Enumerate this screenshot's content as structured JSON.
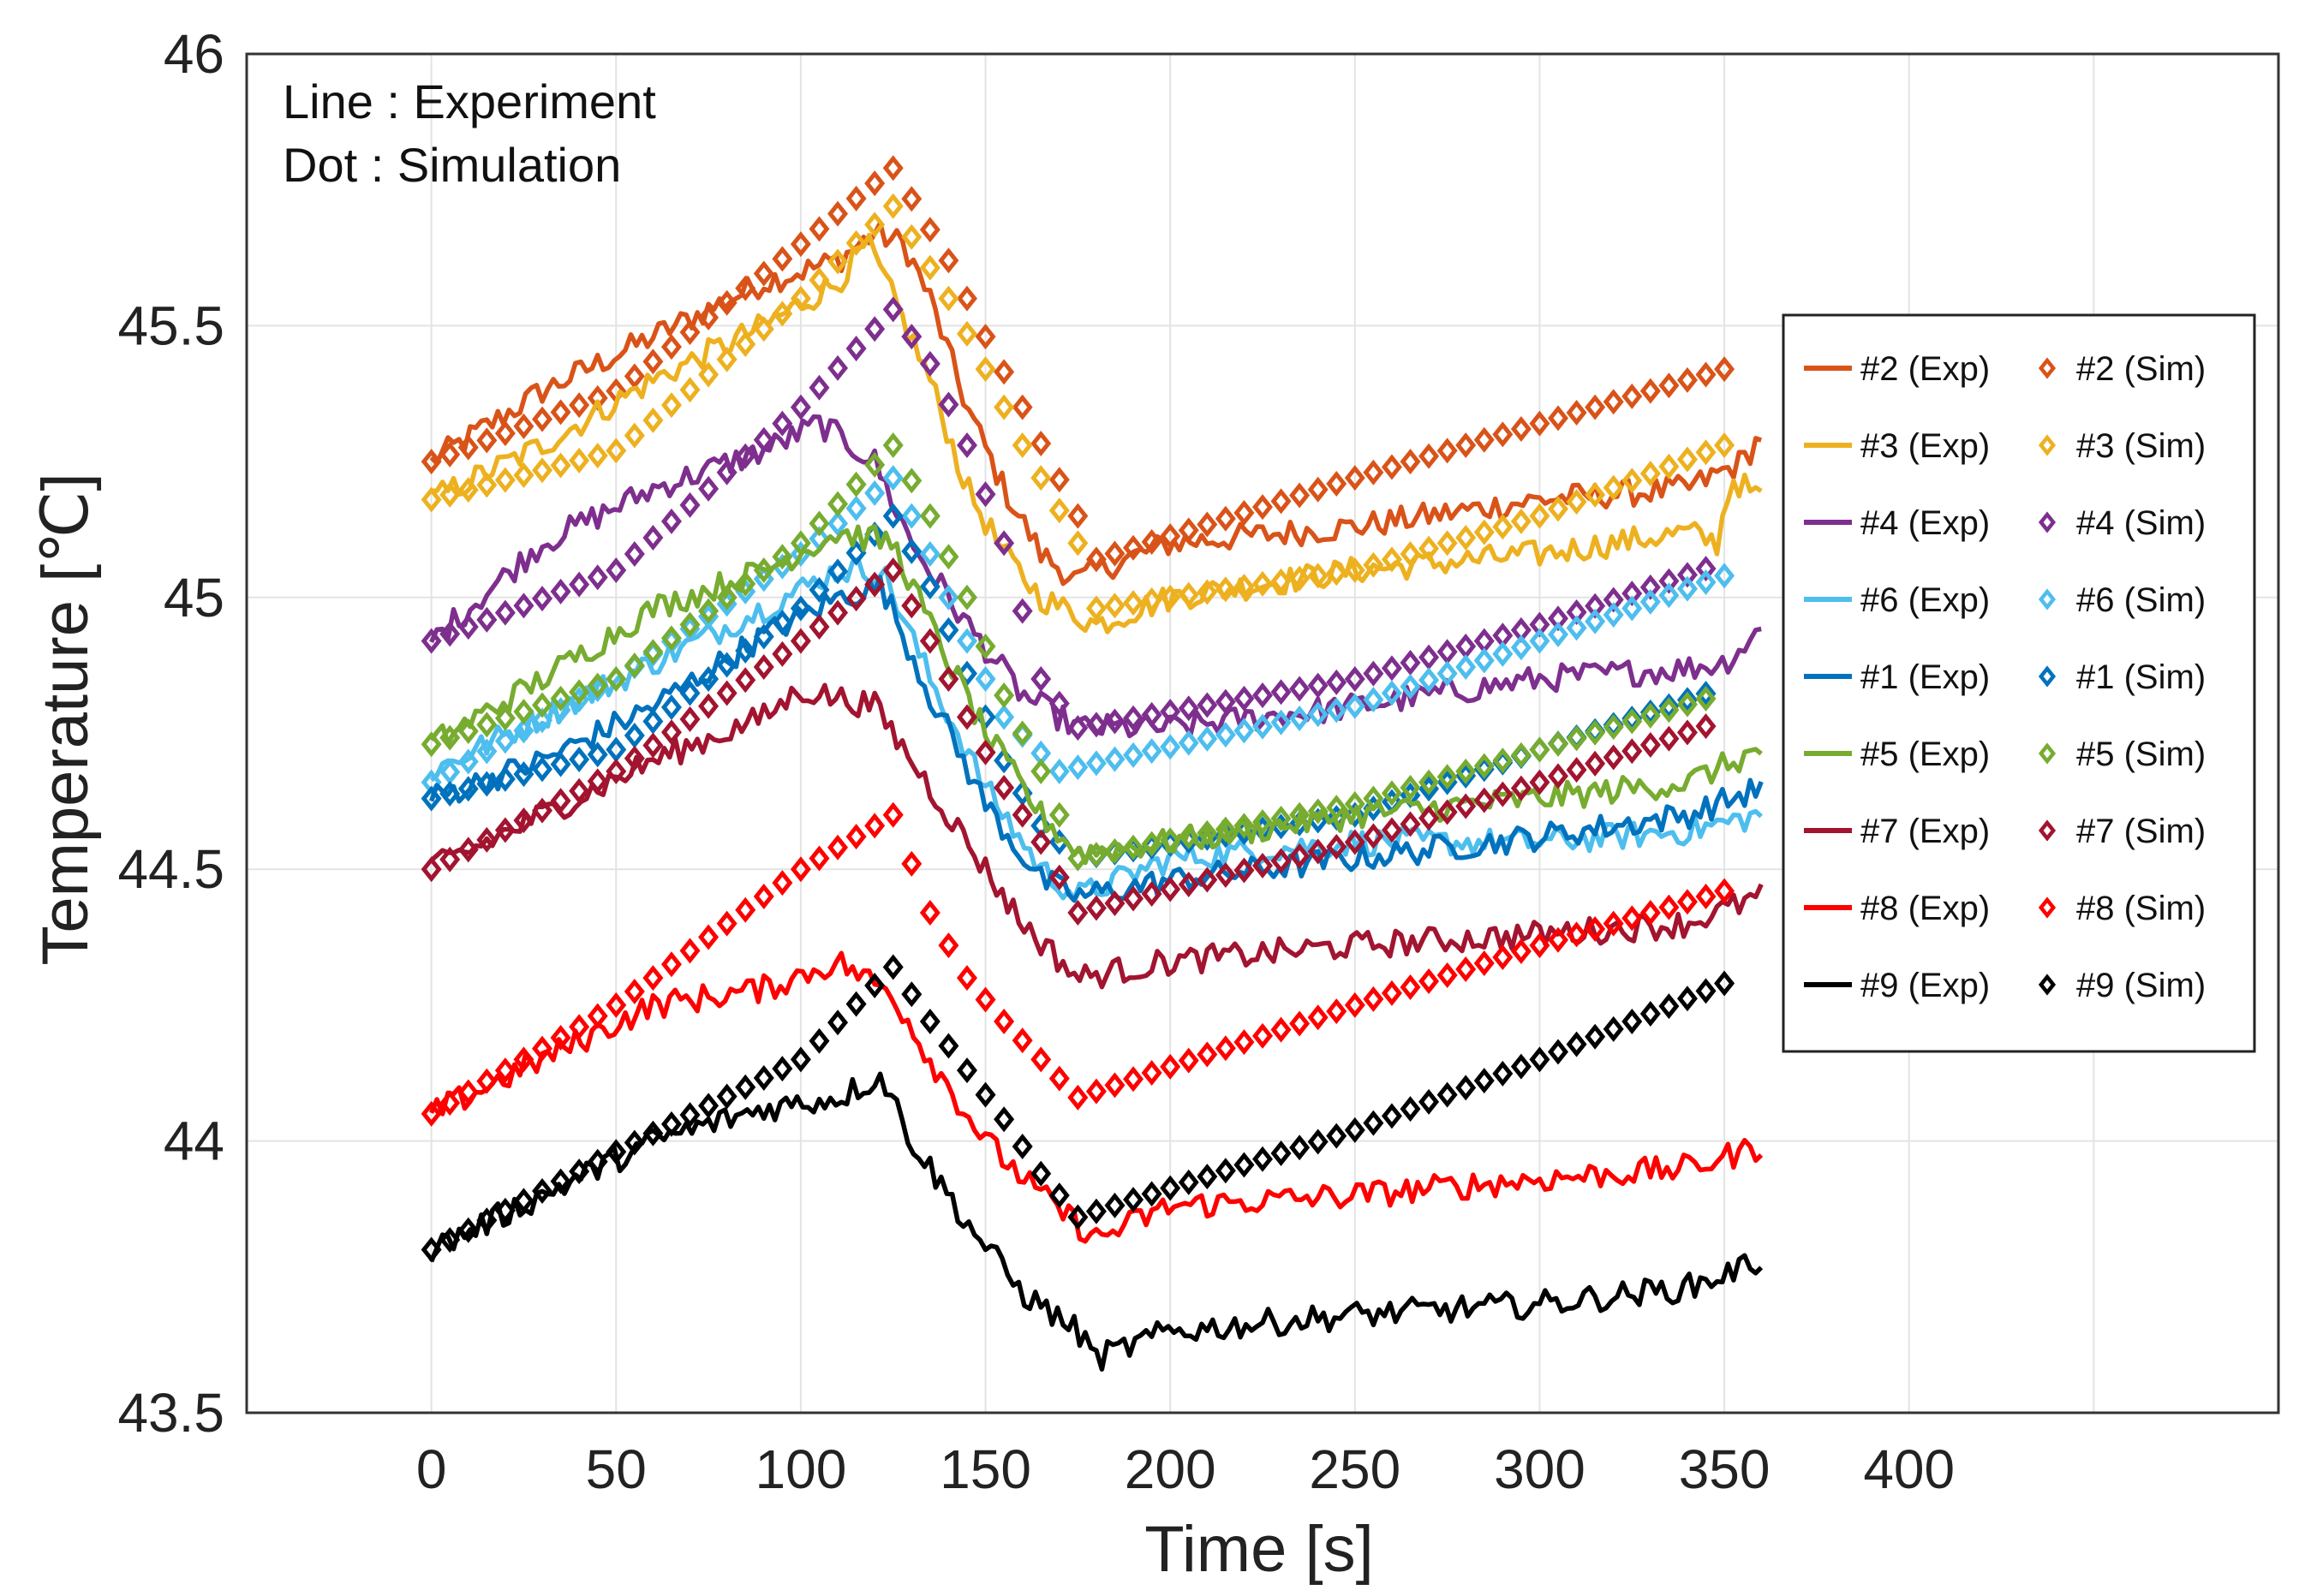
{
  "chart_data": {
    "type": "line",
    "xlabel": "Time [s]",
    "ylabel": "Temperature [℃]",
    "xlim": [
      -50,
      500
    ],
    "ylim": [
      43.5,
      46
    ],
    "xticks": [
      0,
      50,
      100,
      150,
      200,
      250,
      300,
      350,
      400
    ],
    "yticks": [
      43.5,
      44,
      44.5,
      45,
      45.5,
      46
    ],
    "ytick_labels": [
      "43.5",
      "44",
      "44.5",
      "45",
      "45.5",
      "46"
    ],
    "grid": true,
    "annotations": [
      "Line : Experiment",
      "Dot : Simulation"
    ],
    "legend_position": "right",
    "series": [
      {
        "id": "2",
        "color": "#D95319",
        "exp_label": "#2 (Exp)",
        "sim_label": "#2 (Sim)",
        "exp": [
          [
            0,
            45.25
          ],
          [
            30,
            45.38
          ],
          [
            60,
            45.48
          ],
          [
            90,
            45.58
          ],
          [
            110,
            45.62
          ],
          [
            120,
            45.67
          ],
          [
            128,
            45.65
          ],
          [
            135,
            45.55
          ],
          [
            145,
            45.35
          ],
          [
            155,
            45.2
          ],
          [
            165,
            45.08
          ],
          [
            175,
            45.03
          ],
          [
            180,
            45.05
          ],
          [
            200,
            45.1
          ],
          [
            250,
            45.13
          ],
          [
            300,
            45.18
          ],
          [
            340,
            45.2
          ],
          [
            355,
            45.25
          ],
          [
            360,
            45.3
          ]
        ],
        "sim": [
          [
            0,
            45.25
          ],
          [
            50,
            45.38
          ],
          [
            100,
            45.65
          ],
          [
            125,
            45.79
          ],
          [
            140,
            45.62
          ],
          [
            150,
            45.48
          ],
          [
            160,
            45.35
          ],
          [
            175,
            45.15
          ],
          [
            180,
            45.07
          ],
          [
            250,
            45.22
          ],
          [
            300,
            45.32
          ],
          [
            350,
            45.42
          ]
        ]
      },
      {
        "id": "3",
        "color": "#EDB120",
        "exp_label": "#3 (Exp)",
        "sim_label": "#3 (Sim)",
        "exp": [
          [
            0,
            45.18
          ],
          [
            30,
            45.28
          ],
          [
            60,
            45.4
          ],
          [
            90,
            45.5
          ],
          [
            110,
            45.58
          ],
          [
            118,
            45.65
          ],
          [
            125,
            45.55
          ],
          [
            135,
            45.4
          ],
          [
            145,
            45.2
          ],
          [
            155,
            45.08
          ],
          [
            165,
            45.0
          ],
          [
            180,
            44.95
          ],
          [
            200,
            45.0
          ],
          [
            250,
            45.05
          ],
          [
            300,
            45.08
          ],
          [
            340,
            45.12
          ],
          [
            348,
            45.1
          ],
          [
            352,
            45.22
          ],
          [
            360,
            45.18
          ]
        ],
        "sim": [
          [
            0,
            45.18
          ],
          [
            50,
            45.27
          ],
          [
            100,
            45.55
          ],
          [
            125,
            45.72
          ],
          [
            140,
            45.55
          ],
          [
            150,
            45.42
          ],
          [
            160,
            45.28
          ],
          [
            175,
            45.1
          ],
          [
            180,
            44.98
          ],
          [
            250,
            45.05
          ],
          [
            300,
            45.15
          ],
          [
            350,
            45.28
          ]
        ]
      },
      {
        "id": "4",
        "color": "#7E2F8E",
        "exp_label": "#4 (Exp)",
        "sim_label": "#4 (Sim)",
        "exp": [
          [
            0,
            44.92
          ],
          [
            30,
            45.1
          ],
          [
            60,
            45.2
          ],
          [
            90,
            45.27
          ],
          [
            105,
            45.32
          ],
          [
            120,
            45.25
          ],
          [
            130,
            45.1
          ],
          [
            145,
            44.95
          ],
          [
            160,
            44.82
          ],
          [
            175,
            44.76
          ],
          [
            200,
            44.76
          ],
          [
            250,
            44.8
          ],
          [
            300,
            44.85
          ],
          [
            340,
            44.87
          ],
          [
            350,
            44.88
          ],
          [
            360,
            44.94
          ]
        ],
        "sim": [
          [
            0,
            44.92
          ],
          [
            50,
            45.05
          ],
          [
            100,
            45.35
          ],
          [
            125,
            45.53
          ],
          [
            135,
            45.43
          ],
          [
            145,
            45.28
          ],
          [
            155,
            45.1
          ],
          [
            165,
            44.85
          ],
          [
            175,
            44.76
          ],
          [
            250,
            44.85
          ],
          [
            300,
            44.95
          ],
          [
            348,
            45.06
          ]
        ]
      },
      {
        "id": "6",
        "color": "#4DBEEE",
        "exp_label": "#6 (Exp)",
        "sim_label": "#6 (Sim)",
        "exp": [
          [
            0,
            44.68
          ],
          [
            30,
            44.78
          ],
          [
            60,
            44.88
          ],
          [
            90,
            44.98
          ],
          [
            110,
            45.05
          ],
          [
            122,
            45.05
          ],
          [
            135,
            44.85
          ],
          [
            150,
            44.65
          ],
          [
            165,
            44.5
          ],
          [
            175,
            44.45
          ],
          [
            200,
            44.52
          ],
          [
            250,
            44.55
          ],
          [
            300,
            44.55
          ],
          [
            340,
            44.57
          ],
          [
            360,
            44.6
          ]
        ],
        "sim": [
          [
            0,
            44.66
          ],
          [
            50,
            44.85
          ],
          [
            100,
            45.08
          ],
          [
            125,
            45.22
          ],
          [
            135,
            45.08
          ],
          [
            145,
            44.92
          ],
          [
            155,
            44.78
          ],
          [
            170,
            44.68
          ],
          [
            250,
            44.8
          ],
          [
            300,
            44.92
          ],
          [
            350,
            45.04
          ]
        ]
      },
      {
        "id": "1",
        "color": "#0072BD",
        "exp_label": "#1 (Exp)",
        "sim_label": "#1 (Sim)",
        "exp": [
          [
            0,
            44.63
          ],
          [
            30,
            44.7
          ],
          [
            60,
            44.8
          ],
          [
            90,
            44.93
          ],
          [
            110,
            45.0
          ],
          [
            122,
            45.02
          ],
          [
            135,
            44.82
          ],
          [
            150,
            44.62
          ],
          [
            165,
            44.48
          ],
          [
            175,
            44.45
          ],
          [
            200,
            44.48
          ],
          [
            250,
            44.52
          ],
          [
            300,
            44.56
          ],
          [
            340,
            44.6
          ],
          [
            360,
            44.65
          ]
        ],
        "sim": [
          [
            0,
            44.63
          ],
          [
            50,
            44.72
          ],
          [
            100,
            44.98
          ],
          [
            125,
            45.15
          ],
          [
            135,
            45.02
          ],
          [
            145,
            44.86
          ],
          [
            155,
            44.7
          ],
          [
            165,
            44.58
          ],
          [
            175,
            44.52
          ],
          [
            250,
            44.6
          ],
          [
            300,
            44.72
          ],
          [
            348,
            44.83
          ]
        ]
      },
      {
        "id": "5",
        "color": "#77AC30",
        "exp_label": "#5 (Exp)",
        "sim_label": "#5 (Sim)",
        "exp": [
          [
            0,
            44.73
          ],
          [
            30,
            44.85
          ],
          [
            60,
            44.98
          ],
          [
            90,
            45.05
          ],
          [
            110,
            45.12
          ],
          [
            125,
            45.1
          ],
          [
            135,
            44.95
          ],
          [
            150,
            44.75
          ],
          [
            165,
            44.6
          ],
          [
            175,
            44.53
          ],
          [
            200,
            44.55
          ],
          [
            250,
            44.6
          ],
          [
            300,
            44.63
          ],
          [
            340,
            44.66
          ],
          [
            360,
            44.72
          ]
        ],
        "sim": [
          [
            0,
            44.73
          ],
          [
            50,
            44.85
          ],
          [
            100,
            45.1
          ],
          [
            125,
            45.28
          ],
          [
            135,
            45.15
          ],
          [
            145,
            45.0
          ],
          [
            155,
            44.82
          ],
          [
            165,
            44.68
          ],
          [
            175,
            44.52
          ],
          [
            250,
            44.62
          ],
          [
            300,
            44.72
          ],
          [
            348,
            44.82
          ]
        ]
      },
      {
        "id": "7",
        "color": "#A2142F",
        "exp_label": "#7 (Exp)",
        "sim_label": "#7 (Sim)",
        "exp": [
          [
            0,
            44.5
          ],
          [
            30,
            44.6
          ],
          [
            60,
            44.7
          ],
          [
            90,
            44.78
          ],
          [
            100,
            44.83
          ],
          [
            120,
            44.8
          ],
          [
            130,
            44.7
          ],
          [
            145,
            44.55
          ],
          [
            160,
            44.4
          ],
          [
            175,
            44.3
          ],
          [
            200,
            44.33
          ],
          [
            250,
            44.36
          ],
          [
            300,
            44.38
          ],
          [
            340,
            44.4
          ],
          [
            360,
            44.45
          ]
        ],
        "sim": [
          [
            0,
            44.5
          ],
          [
            50,
            44.68
          ],
          [
            100,
            44.92
          ],
          [
            125,
            45.05
          ],
          [
            135,
            44.92
          ],
          [
            145,
            44.78
          ],
          [
            155,
            44.65
          ],
          [
            165,
            44.55
          ],
          [
            175,
            44.42
          ],
          [
            250,
            44.55
          ],
          [
            300,
            44.66
          ],
          [
            348,
            44.77
          ]
        ]
      },
      {
        "id": "8",
        "color": "#FF0000",
        "exp_label": "#8 (Exp)",
        "sim_label": "#8 (Sim)",
        "exp": [
          [
            0,
            44.05
          ],
          [
            30,
            44.15
          ],
          [
            60,
            44.25
          ],
          [
            90,
            44.28
          ],
          [
            110,
            44.33
          ],
          [
            125,
            44.27
          ],
          [
            135,
            44.15
          ],
          [
            150,
            44.0
          ],
          [
            165,
            43.9
          ],
          [
            180,
            43.82
          ],
          [
            200,
            43.88
          ],
          [
            250,
            43.9
          ],
          [
            300,
            43.93
          ],
          [
            340,
            43.95
          ],
          [
            360,
            43.99
          ]
        ],
        "sim": [
          [
            0,
            44.05
          ],
          [
            50,
            44.25
          ],
          [
            100,
            44.5
          ],
          [
            125,
            44.6
          ],
          [
            135,
            44.42
          ],
          [
            145,
            44.3
          ],
          [
            155,
            44.22
          ],
          [
            165,
            44.15
          ],
          [
            175,
            44.08
          ],
          [
            250,
            44.25
          ],
          [
            300,
            44.36
          ],
          [
            350,
            44.46
          ]
        ]
      },
      {
        "id": "9",
        "color": "#000000",
        "exp_label": "#9 (Exp)",
        "sim_label": "#9 (Sim)",
        "exp": [
          [
            0,
            43.8
          ],
          [
            30,
            43.9
          ],
          [
            60,
            44.0
          ],
          [
            90,
            44.06
          ],
          [
            110,
            44.08
          ],
          [
            122,
            44.12
          ],
          [
            130,
            44.0
          ],
          [
            145,
            43.85
          ],
          [
            160,
            43.72
          ],
          [
            175,
            43.65
          ],
          [
            180,
            43.6
          ],
          [
            200,
            43.65
          ],
          [
            250,
            43.68
          ],
          [
            300,
            43.7
          ],
          [
            340,
            43.73
          ],
          [
            360,
            43.78
          ]
        ],
        "sim": [
          [
            0,
            43.8
          ],
          [
            50,
            43.98
          ],
          [
            100,
            44.15
          ],
          [
            125,
            44.32
          ],
          [
            135,
            44.22
          ],
          [
            145,
            44.13
          ],
          [
            155,
            44.04
          ],
          [
            165,
            43.94
          ],
          [
            175,
            43.86
          ],
          [
            250,
            44.02
          ],
          [
            300,
            44.15
          ],
          [
            350,
            44.29
          ]
        ]
      }
    ]
  }
}
